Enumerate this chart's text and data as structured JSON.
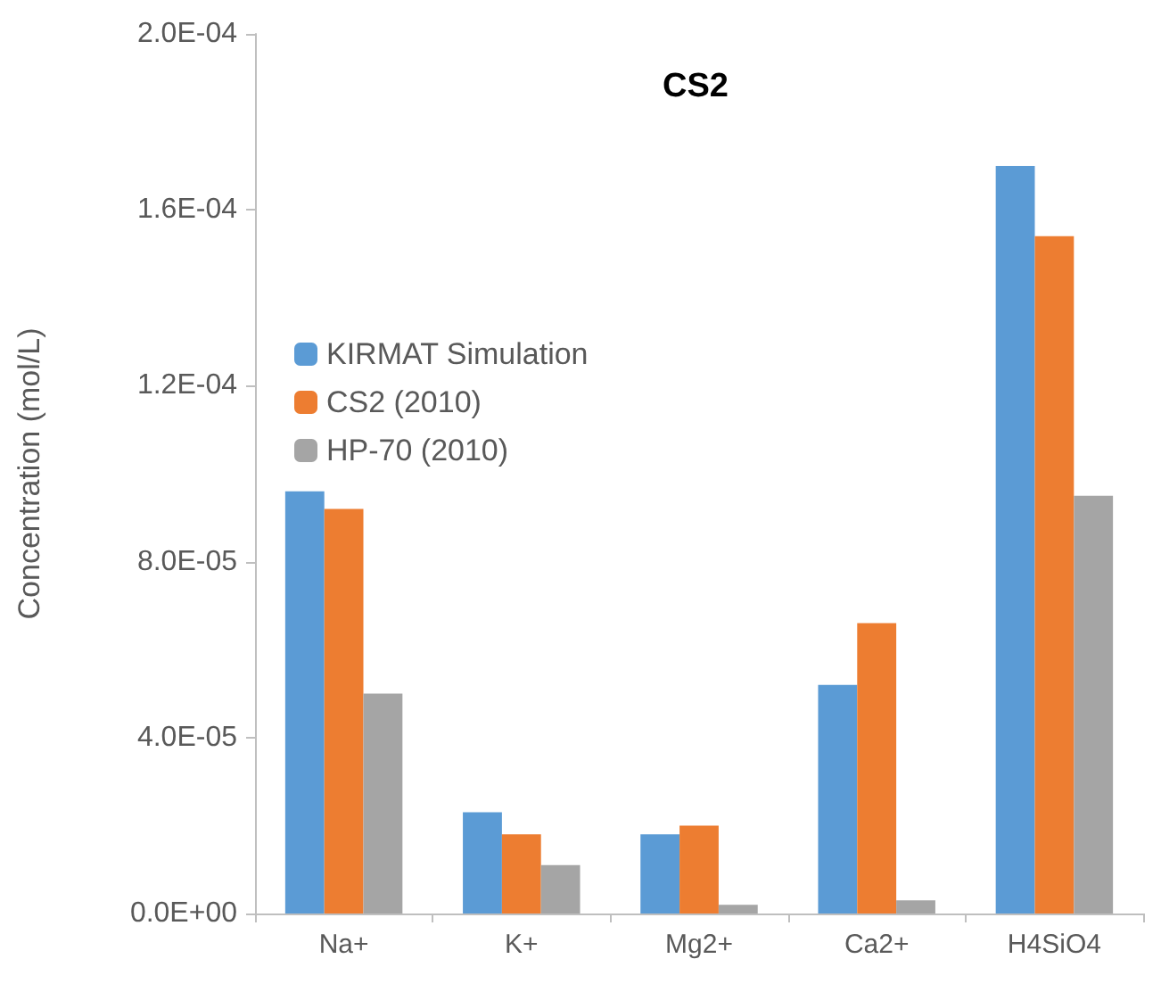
{
  "chart_data": {
    "type": "bar",
    "title": "CS2",
    "ylabel": "Concentration (mol/L)",
    "categories": [
      "Na+",
      "K+",
      "Mg2+",
      "Ca2+",
      "H4SiO4"
    ],
    "series": [
      {
        "name": "KIRMAT Simulation",
        "color": "#5b9bd5",
        "values": [
          9.6e-05,
          2.3e-05,
          1.8e-05,
          5.2e-05,
          0.00017
        ]
      },
      {
        "name": "CS2 (2010)",
        "color": "#ed7d31",
        "values": [
          9.2e-05,
          1.8e-05,
          2e-05,
          6.6e-05,
          0.000154
        ]
      },
      {
        "name": "HP-70 (2010)",
        "color": "#a5a5a5",
        "values": [
          5e-05,
          1.1e-05,
          2e-06,
          3e-06,
          9.5e-05
        ]
      }
    ],
    "ylim": [
      0,
      0.0002
    ],
    "yticks": [
      {
        "value": 0,
        "label": "0.0E+00"
      },
      {
        "value": 4e-05,
        "label": "4.0E-05"
      },
      {
        "value": 8e-05,
        "label": "8.0E-05"
      },
      {
        "value": 0.00012,
        "label": "1.2E-04"
      },
      {
        "value": 0.00016,
        "label": "1.6E-04"
      },
      {
        "value": 0.0002,
        "label": "2.0E-04"
      }
    ],
    "grid": false,
    "legend": "left"
  }
}
